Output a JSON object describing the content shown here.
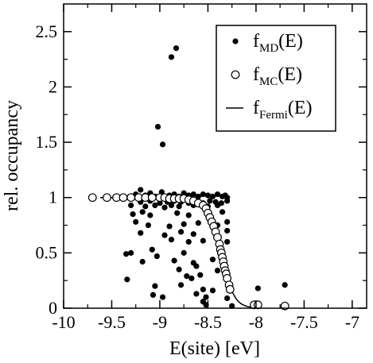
{
  "chart_data": {
    "type": "scatter",
    "title": "",
    "xlabel": "E(site) [eV]",
    "ylabel": "rel. occupancy",
    "xlim": [
      -10,
      -6.85
    ],
    "ylim": [
      0,
      2.75
    ],
    "xticks": [
      {
        "value": -10,
        "label": "-10"
      },
      {
        "value": -9.5,
        "label": "-9.5"
      },
      {
        "value": -9,
        "label": "-9"
      },
      {
        "value": -8.5,
        "label": "-8.5"
      },
      {
        "value": -8,
        "label": "-8"
      },
      {
        "value": -7.5,
        "label": "-7.5"
      },
      {
        "value": -7,
        "label": "-7"
      }
    ],
    "yticks": [
      {
        "value": 0,
        "label": "0"
      },
      {
        "value": 0.5,
        "label": "0.5"
      },
      {
        "value": 1,
        "label": "1"
      },
      {
        "value": 1.5,
        "label": "1.5"
      },
      {
        "value": 2,
        "label": "2"
      },
      {
        "value": 2.5,
        "label": "2.5"
      }
    ],
    "grid": false,
    "legend_position": "top-right",
    "series": [
      {
        "name": "f_MD(E)",
        "label_main": "f",
        "label_sub": "MD",
        "label_suffix": "(E)",
        "marker": "filled-circle",
        "color": "#000000",
        "points": [
          [
            -8.88,
            2.27
          ],
          [
            -8.83,
            2.35
          ],
          [
            -9.02,
            1.64
          ],
          [
            -8.97,
            1.48
          ],
          [
            -9.32,
            1.0
          ],
          [
            -9.25,
            1.03
          ],
          [
            -9.2,
            1.07
          ],
          [
            -9.15,
            1.02
          ],
          [
            -9.1,
            1.04
          ],
          [
            -9.05,
            1.01
          ],
          [
            -8.98,
            1.05
          ],
          [
            -8.9,
            1.02
          ],
          [
            -8.85,
            1.03
          ],
          [
            -8.8,
            1.01
          ],
          [
            -8.75,
            1.04
          ],
          [
            -8.7,
            1.02
          ],
          [
            -8.65,
            1.03
          ],
          [
            -8.6,
            1.01
          ],
          [
            -8.55,
            1.03
          ],
          [
            -8.5,
            1.02
          ],
          [
            -8.45,
            1.01
          ],
          [
            -8.4,
            1.03
          ],
          [
            -8.35,
            1.01
          ],
          [
            -8.32,
            1.02
          ],
          [
            -8.3,
            1.0
          ],
          [
            -9.2,
            0.96
          ],
          [
            -9.1,
            0.97
          ],
          [
            -9.0,
            0.95
          ],
          [
            -8.92,
            0.96
          ],
          [
            -8.85,
            0.97
          ],
          [
            -8.78,
            0.96
          ],
          [
            -8.7,
            0.95
          ],
          [
            -8.62,
            0.96
          ],
          [
            -8.55,
            0.95
          ],
          [
            -8.48,
            0.97
          ],
          [
            -8.42,
            0.96
          ],
          [
            -8.36,
            0.95
          ],
          [
            -8.3,
            0.97
          ],
          [
            -9.3,
            0.93
          ],
          [
            -9.15,
            0.92
          ],
          [
            -9.05,
            0.93
          ],
          [
            -8.95,
            0.91
          ],
          [
            -8.88,
            0.93
          ],
          [
            -8.8,
            0.92
          ],
          [
            -8.65,
            0.93
          ],
          [
            -8.5,
            0.92
          ],
          [
            -8.4,
            0.93
          ],
          [
            -9.28,
            0.85
          ],
          [
            -9.18,
            0.87
          ],
          [
            -9.1,
            0.84
          ],
          [
            -8.82,
            0.86
          ],
          [
            -8.7,
            0.84
          ],
          [
            -8.35,
            0.87
          ],
          [
            -9.25,
            0.78
          ],
          [
            -9.12,
            0.75
          ],
          [
            -8.9,
            0.74
          ],
          [
            -8.75,
            0.76
          ],
          [
            -8.6,
            0.77
          ],
          [
            -8.4,
            0.75
          ],
          [
            -8.3,
            0.78
          ],
          [
            -9.2,
            0.68
          ],
          [
            -8.95,
            0.66
          ],
          [
            -8.78,
            0.69
          ],
          [
            -8.65,
            0.67
          ],
          [
            -8.3,
            0.7
          ],
          [
            -8.88,
            0.62
          ],
          [
            -8.7,
            0.6
          ],
          [
            -8.55,
            0.61
          ],
          [
            -8.3,
            0.6
          ],
          [
            -9.35,
            0.49
          ],
          [
            -9.3,
            0.5
          ],
          [
            -9.08,
            0.53
          ],
          [
            -9.03,
            0.47
          ],
          [
            -8.75,
            0.5
          ],
          [
            -9.18,
            0.42
          ],
          [
            -8.85,
            0.43
          ],
          [
            -8.65,
            0.41
          ],
          [
            -8.45,
            0.44
          ],
          [
            -8.62,
            0.38
          ],
          [
            -8.8,
            0.35
          ],
          [
            -8.4,
            0.34
          ],
          [
            -9.34,
            0.26
          ],
          [
            -8.72,
            0.29
          ],
          [
            -8.67,
            0.27
          ],
          [
            -8.58,
            0.3
          ],
          [
            -8.32,
            0.32
          ],
          [
            -9.05,
            0.2
          ],
          [
            -8.78,
            0.21
          ],
          [
            -8.55,
            0.17
          ],
          [
            -8.45,
            0.16
          ],
          [
            -7.98,
            0.18
          ],
          [
            -7.7,
            0.21
          ],
          [
            -9.07,
            0.12
          ],
          [
            -8.97,
            0.1
          ],
          [
            -8.62,
            0.13
          ],
          [
            -8.52,
            0.1
          ],
          [
            -8.3,
            0.09
          ],
          [
            -8.55,
            0.06
          ],
          [
            -8.52,
            0.03
          ],
          [
            -8.25,
            0.02
          ],
          [
            -7.99,
            0.04
          ]
        ]
      },
      {
        "name": "f_MC(E)",
        "label_main": "f",
        "label_sub": "MC",
        "label_suffix": "(E)",
        "marker": "open-circle",
        "color": "#000000",
        "points": [
          [
            -9.7,
            1.0
          ],
          [
            -9.55,
            1.0
          ],
          [
            -9.45,
            1.0
          ],
          [
            -9.38,
            1.0
          ],
          [
            -9.3,
            1.0
          ],
          [
            -9.22,
            1.0
          ],
          [
            -9.15,
            1.0
          ],
          [
            -9.08,
            1.0
          ],
          [
            -9.0,
            1.0
          ],
          [
            -8.95,
            1.0
          ],
          [
            -8.9,
            0.99
          ],
          [
            -8.85,
            0.99
          ],
          [
            -8.8,
            0.99
          ],
          [
            -8.75,
            0.99
          ],
          [
            -8.7,
            0.98
          ],
          [
            -8.65,
            0.97
          ],
          [
            -8.6,
            0.95
          ],
          [
            -8.55,
            0.93
          ],
          [
            -8.52,
            0.9
          ],
          [
            -8.5,
            0.86
          ],
          [
            -8.48,
            0.82
          ],
          [
            -8.46,
            0.78
          ],
          [
            -8.44,
            0.74
          ],
          [
            -8.42,
            0.69
          ],
          [
            -8.4,
            0.64
          ],
          [
            -8.38,
            0.58
          ],
          [
            -8.37,
            0.53
          ],
          [
            -8.36,
            0.5
          ],
          [
            -8.35,
            0.46
          ],
          [
            -8.34,
            0.42
          ],
          [
            -8.33,
            0.38
          ],
          [
            -8.32,
            0.34
          ],
          [
            -8.31,
            0.31
          ],
          [
            -8.3,
            0.27
          ],
          [
            -8.28,
            0.21
          ],
          [
            -8.27,
            0.17
          ],
          [
            -8.02,
            0.03
          ],
          [
            -7.98,
            0.03
          ],
          [
            -7.7,
            0.02
          ]
        ]
      },
      {
        "name": "f_Fermi(E)",
        "label_main": "f",
        "label_sub": "Fermi",
        "label_suffix": "(E)",
        "marker": "line",
        "color": "#000000",
        "fermi": {
          "mu": -8.36,
          "kT": 0.065,
          "amplitude": 1.0,
          "x_start": -9.62,
          "x_end": -7.95
        }
      }
    ]
  }
}
